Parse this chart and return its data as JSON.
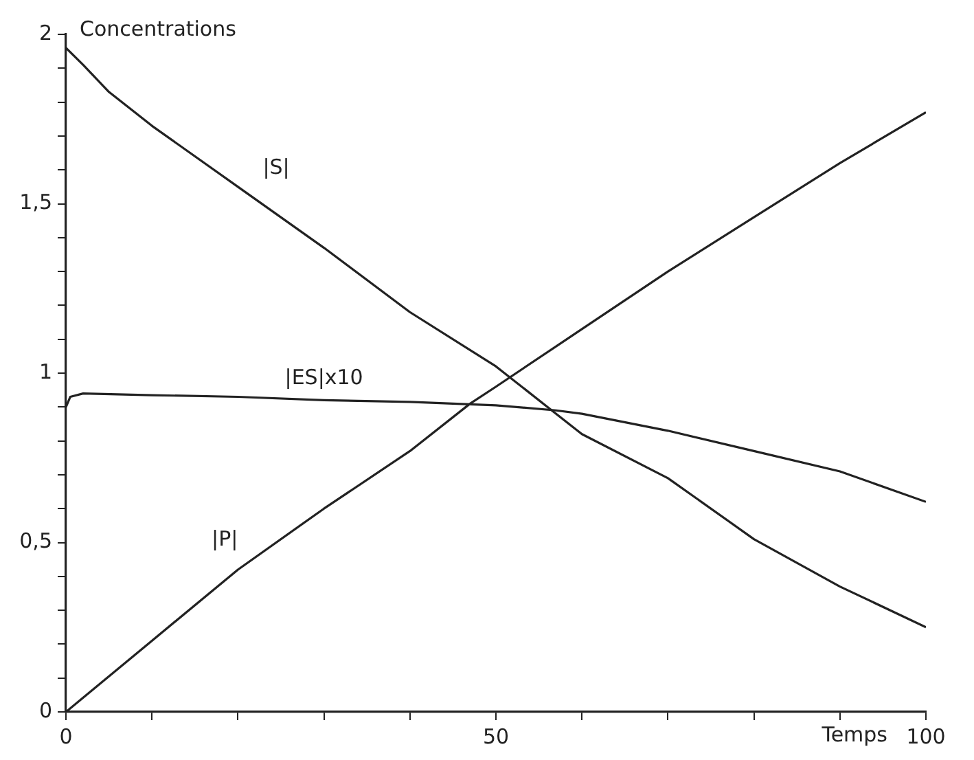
{
  "chart_data": {
    "type": "line",
    "xlabel": "Temps",
    "ylabel": "Concentrations",
    "xlim": [
      0,
      100
    ],
    "ylim": [
      0,
      2
    ],
    "xticks": [
      0,
      {
        "value": 10,
        "label": null
      },
      {
        "value": 20,
        "label": null
      },
      {
        "value": 30,
        "label": null
      },
      {
        "value": 40,
        "label": null
      },
      50,
      {
        "value": 60,
        "label": null
      },
      {
        "value": 70,
        "label": null
      },
      {
        "value": 80,
        "label": null
      },
      {
        "value": 90,
        "label": null
      },
      100
    ],
    "yticks": [
      0,
      {
        "value": 0.1,
        "label": null
      },
      {
        "value": 0.2,
        "label": null
      },
      {
        "value": 0.3,
        "label": null
      },
      {
        "value": 0.4,
        "label": null
      },
      {
        "value": 0.5,
        "label": "0,5"
      },
      {
        "value": 0.6,
        "label": null
      },
      {
        "value": 0.7,
        "label": null
      },
      {
        "value": 0.8,
        "label": null
      },
      {
        "value": 0.9,
        "label": null
      },
      1,
      {
        "value": 1.1,
        "label": null
      },
      {
        "value": 1.2,
        "label": null
      },
      {
        "value": 1.3,
        "label": null
      },
      {
        "value": 1.4,
        "label": null
      },
      {
        "value": 1.5,
        "label": "1,5"
      },
      {
        "value": 1.6,
        "label": null
      },
      {
        "value": 1.7,
        "label": null
      },
      {
        "value": 1.8,
        "label": null
      },
      {
        "value": 1.9,
        "label": null
      },
      2
    ],
    "grid": false,
    "legend": false,
    "marker": "none",
    "line_style": "solid",
    "series": [
      {
        "name": "|S|",
        "color": "#222222",
        "x": [
          0,
          2,
          5,
          10,
          20,
          30,
          40,
          50,
          57,
          60,
          70,
          80,
          90,
          100
        ],
        "values": [
          1.96,
          1.91,
          1.83,
          1.73,
          1.55,
          1.37,
          1.18,
          1.02,
          0.88,
          0.82,
          0.69,
          0.51,
          0.37,
          0.25
        ]
      },
      {
        "name": "|ES|x10",
        "color": "#222222",
        "x": [
          0,
          0.5,
          2,
          10,
          20,
          30,
          40,
          50,
          57,
          60,
          70,
          80,
          90,
          100
        ],
        "values": [
          0.9,
          0.93,
          0.94,
          0.935,
          0.93,
          0.92,
          0.915,
          0.905,
          0.89,
          0.88,
          0.83,
          0.77,
          0.71,
          0.62
        ]
      },
      {
        "name": "|P|",
        "color": "#222222",
        "x": [
          0,
          10,
          20,
          30,
          40,
          47,
          50,
          60,
          70,
          80,
          90,
          100
        ],
        "values": [
          0,
          0.21,
          0.42,
          0.6,
          0.77,
          0.91,
          0.96,
          1.13,
          1.3,
          1.46,
          1.62,
          1.77
        ]
      }
    ]
  }
}
